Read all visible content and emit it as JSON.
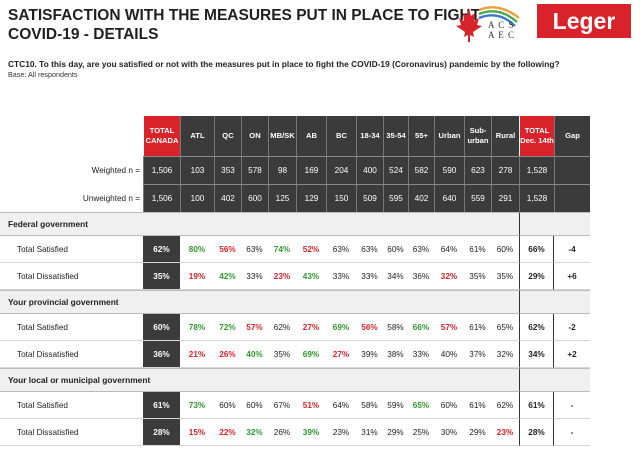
{
  "title_line1": "SATISFACTION WITH THE MEASURES PUT IN PLACE TO FIGHT",
  "title_line2": "COVID-19 - DETAILS",
  "logo_acs_line1": "A C S",
  "logo_acs_line2": "A E C",
  "logo_leger": "Leger",
  "question": "CTC10. To this day, are you satisfied or not with the measures put in place to fight the COVID-19 (Coronavirus) pandemic by the following?",
  "base": "Base: All respondents",
  "colors": {
    "red": "#d8232a",
    "dark": "#3b3b3b",
    "green": "#2c9a2c"
  },
  "headers": [
    "TOTAL CANADA",
    "ATL",
    "QC",
    "ON",
    "MB/SK",
    "AB",
    "BC",
    "18-34",
    "35-54",
    "55+",
    "Urban",
    "Sub-urban",
    "Rural",
    "TOTAL Dec. 14th",
    "Gap"
  ],
  "weighted": {
    "label": "Weighted n =",
    "values": [
      "1,506",
      "103",
      "353",
      "578",
      "98",
      "169",
      "204",
      "400",
      "524",
      "582",
      "590",
      "623",
      "278",
      "1,528"
    ]
  },
  "unweighted": {
    "label": "Unweighted n =",
    "values": [
      "1,506",
      "100",
      "402",
      "600",
      "125",
      "129",
      "150",
      "509",
      "595",
      "402",
      "640",
      "559",
      "291",
      "1,528"
    ]
  },
  "sections": [
    {
      "title": "Federal government",
      "rows": [
        {
          "label": "Total Satisfied",
          "values": [
            "62%",
            "80%",
            "56%",
            "63%",
            "74%",
            "52%",
            "63%",
            "63%",
            "60%",
            "63%",
            "64%",
            "61%",
            "60%"
          ],
          "dec": "66%",
          "gap": "-4",
          "styles": [
            "",
            "up",
            "down",
            "",
            "up",
            "down",
            "",
            "",
            "",
            "",
            "",
            "",
            ""
          ]
        },
        {
          "label": "Total Dissatisfied",
          "values": [
            "35%",
            "19%",
            "42%",
            "33%",
            "23%",
            "43%",
            "33%",
            "33%",
            "34%",
            "36%",
            "32%",
            "35%",
            "35%"
          ],
          "dec": "29%",
          "gap": "+6",
          "styles": [
            "",
            "down",
            "up",
            "",
            "down",
            "up",
            "",
            "",
            "",
            "",
            "down",
            "",
            ""
          ]
        }
      ]
    },
    {
      "title": "Your provincial government",
      "rows": [
        {
          "label": "Total Satisfied",
          "values": [
            "60%",
            "78%",
            "72%",
            "57%",
            "62%",
            "27%",
            "69%",
            "56%",
            "58%",
            "66%",
            "57%",
            "61%",
            "65%"
          ],
          "dec": "62%",
          "gap": "-2",
          "styles": [
            "",
            "up",
            "up",
            "down",
            "",
            "down",
            "up",
            "down",
            "",
            "up",
            "down",
            "",
            ""
          ]
        },
        {
          "label": "Total Dissatisfied",
          "values": [
            "36%",
            "21%",
            "26%",
            "40%",
            "35%",
            "69%",
            "27%",
            "39%",
            "38%",
            "33%",
            "40%",
            "37%",
            "32%"
          ],
          "dec": "34%",
          "gap": "+2",
          "styles": [
            "",
            "down",
            "down",
            "up",
            "",
            "up",
            "down",
            "",
            "",
            "",
            "",
            "",
            ""
          ]
        }
      ]
    },
    {
      "title": "Your local or municipal government",
      "rows": [
        {
          "label": "Total Satisfied",
          "values": [
            "61%",
            "73%",
            "60%",
            "60%",
            "67%",
            "51%",
            "64%",
            "58%",
            "59%",
            "65%",
            "60%",
            "61%",
            "62%"
          ],
          "dec": "61%",
          "gap": "-",
          "styles": [
            "",
            "up",
            "",
            "",
            "",
            "down",
            "",
            "",
            "",
            "up",
            "",
            "",
            ""
          ]
        },
        {
          "label": "Total Dissatisfied",
          "values": [
            "28%",
            "15%",
            "22%",
            "32%",
            "26%",
            "39%",
            "23%",
            "31%",
            "29%",
            "25%",
            "30%",
            "29%",
            "23%"
          ],
          "dec": "28%",
          "gap": "-",
          "styles": [
            "",
            "down",
            "down",
            "up",
            "",
            "up",
            "",
            "",
            "",
            "",
            "",
            "",
            "down"
          ]
        }
      ]
    }
  ]
}
